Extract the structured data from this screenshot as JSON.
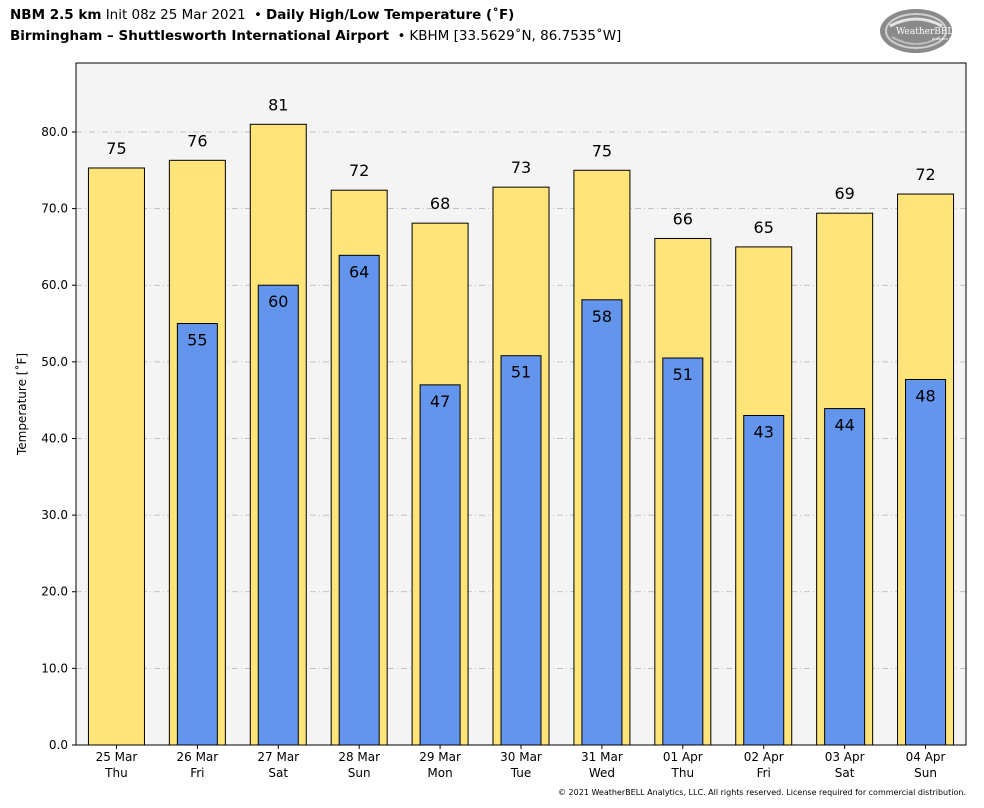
{
  "header": {
    "model": "NBM 2.5 km",
    "init": "Init 08z 25 Mar 2021",
    "bullet": "•",
    "product": "Daily High/Low Temperature (˚F)",
    "location": "Birmingham – Shuttlesworth International Airport",
    "station": "KBHM [33.5629˚N, 86.7535˚W]"
  },
  "logo": {
    "text": "WeatherBELL",
    "subtext": "Analytics LLC"
  },
  "footer": {
    "copyright": "© 2021 WeatherBELL Analytics, LLC. All rights reserved. License required for commercial distribution."
  },
  "colors": {
    "high": "#FFE47A",
    "low": "#6495ED",
    "plot_bg": "#F4F4F4",
    "grid": "#B0B0B0"
  },
  "chart_data": {
    "type": "bar",
    "ylabel": "Temperature [˚F]",
    "ylim": [
      0,
      89
    ],
    "yticks": [
      0,
      10,
      20,
      30,
      40,
      50,
      60,
      70,
      80
    ],
    "ytick_labels": [
      "0.0",
      "10.0",
      "20.0",
      "30.0",
      "40.0",
      "50.0",
      "60.0",
      "70.0",
      "80.0"
    ],
    "grid": true,
    "categories": [
      [
        "25 Mar",
        "Thu"
      ],
      [
        "26 Mar",
        "Fri"
      ],
      [
        "27 Mar",
        "Sat"
      ],
      [
        "28 Mar",
        "Sun"
      ],
      [
        "29 Mar",
        "Mon"
      ],
      [
        "30 Mar",
        "Tue"
      ],
      [
        "31 Mar",
        "Wed"
      ],
      [
        "01 Apr",
        "Thu"
      ],
      [
        "02 Apr",
        "Fri"
      ],
      [
        "03 Apr",
        "Sat"
      ],
      [
        "04 Apr",
        "Sun"
      ]
    ],
    "series": [
      {
        "key": "high",
        "values": [
          75.3,
          76.3,
          81.0,
          72.4,
          68.1,
          72.8,
          75.0,
          66.1,
          65.0,
          69.4,
          71.9
        ],
        "labels": [
          "75",
          "76",
          "81",
          "72",
          "68",
          "73",
          "75",
          "66",
          "65",
          "69",
          "72"
        ]
      },
      {
        "key": "low",
        "values": [
          null,
          55.0,
          60.0,
          63.9,
          47.0,
          50.8,
          58.1,
          50.5,
          43.0,
          43.9,
          47.7
        ],
        "labels": [
          "",
          "55",
          "60",
          "64",
          "47",
          "51",
          "58",
          "51",
          "43",
          "44",
          "48"
        ]
      }
    ]
  }
}
